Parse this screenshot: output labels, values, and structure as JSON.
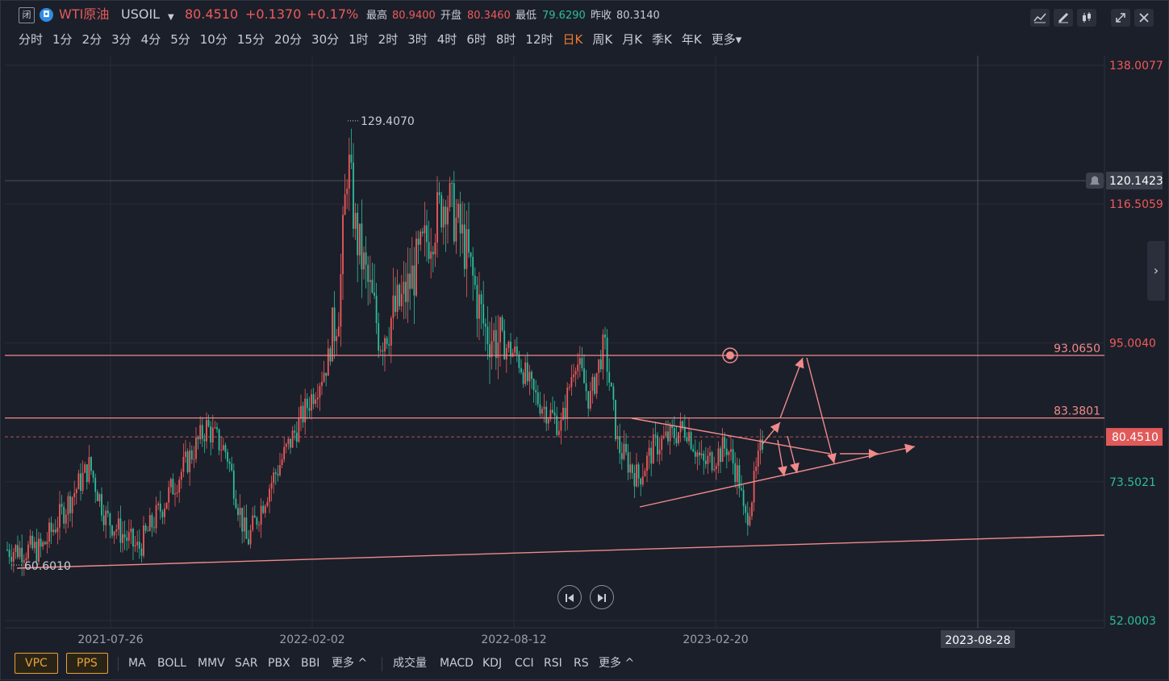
{
  "header": {
    "close_badge": "闭",
    "brand_icon": "◘",
    "title": "WTI原油",
    "symbol": "USOIL",
    "price": "80.4510",
    "change": "+0.1370",
    "change_pct": "+0.17%",
    "stats": [
      {
        "label": "最高",
        "value": "80.9400",
        "color": "#ef5a5a"
      },
      {
        "label": "开盘",
        "value": "80.3460",
        "color": "#ef5a5a"
      },
      {
        "label": "最低",
        "value": "79.6290",
        "color": "#2dbd9b"
      },
      {
        "label": "昨收",
        "value": "80.3140",
        "color": "#c9ccd3"
      }
    ],
    "tool_icons": [
      "line-chart-icon",
      "draw-pen-icon",
      "candlestick-icon",
      "expand-icon",
      "close-icon"
    ]
  },
  "periods": [
    "分时",
    "1分",
    "2分",
    "3分",
    "4分",
    "5分",
    "10分",
    "15分",
    "20分",
    "30分",
    "1时",
    "2时",
    "3时",
    "4时",
    "6时",
    "8时",
    "12时",
    "日K",
    "周K",
    "月K",
    "季K",
    "年K",
    "更多▾"
  ],
  "active_period": "日K",
  "chart_data": {
    "type": "candlestick",
    "y_axis_labels": [
      {
        "value": "138.0077",
        "price": 138.0077,
        "color": "#ef5a5a"
      },
      {
        "value": "116.5059",
        "price": 116.5059,
        "color": "#ef5a5a"
      },
      {
        "value": "95.0040",
        "price": 95.004,
        "color": "#ef5a5a"
      },
      {
        "value": "73.5021",
        "price": 73.5021,
        "color": "#2dbd9b"
      },
      {
        "value": "52.0003",
        "price": 52.0003,
        "color": "#2dbd9b"
      }
    ],
    "x_axis_labels": [
      "2021-07-26",
      "2022-02-02",
      "2022-08-12",
      "2023-02-20"
    ],
    "cursor_date": "2023-08-28",
    "crosshair_price": "120.1423",
    "current_price": "80.4510",
    "high_marker": "129.4070",
    "low_marker": "60.6010",
    "horizontal_lines": [
      {
        "label": "93.0650",
        "price": 93.065
      },
      {
        "label": "83.3801",
        "price": 83.3801
      }
    ],
    "ylim": [
      52.0003,
      138.0077
    ],
    "colors": {
      "up": "#ef5a5a",
      "down": "#2dbd9b",
      "trend": "#f08a8a"
    }
  },
  "indicators": {
    "main": [
      "VPC",
      "PPS"
    ],
    "overlay": [
      "MA",
      "BOLL",
      "MMV",
      "SAR",
      "PBX",
      "BBI"
    ],
    "overlay_more": "更多 ^",
    "sub": [
      "成交量",
      "MACD",
      "KDJ",
      "CCI",
      "RSI",
      "RS"
    ],
    "sub_more": "更多 ^"
  },
  "nav": {
    "prev_icon": "skip-back-icon",
    "next_icon": "skip-forward-icon"
  }
}
